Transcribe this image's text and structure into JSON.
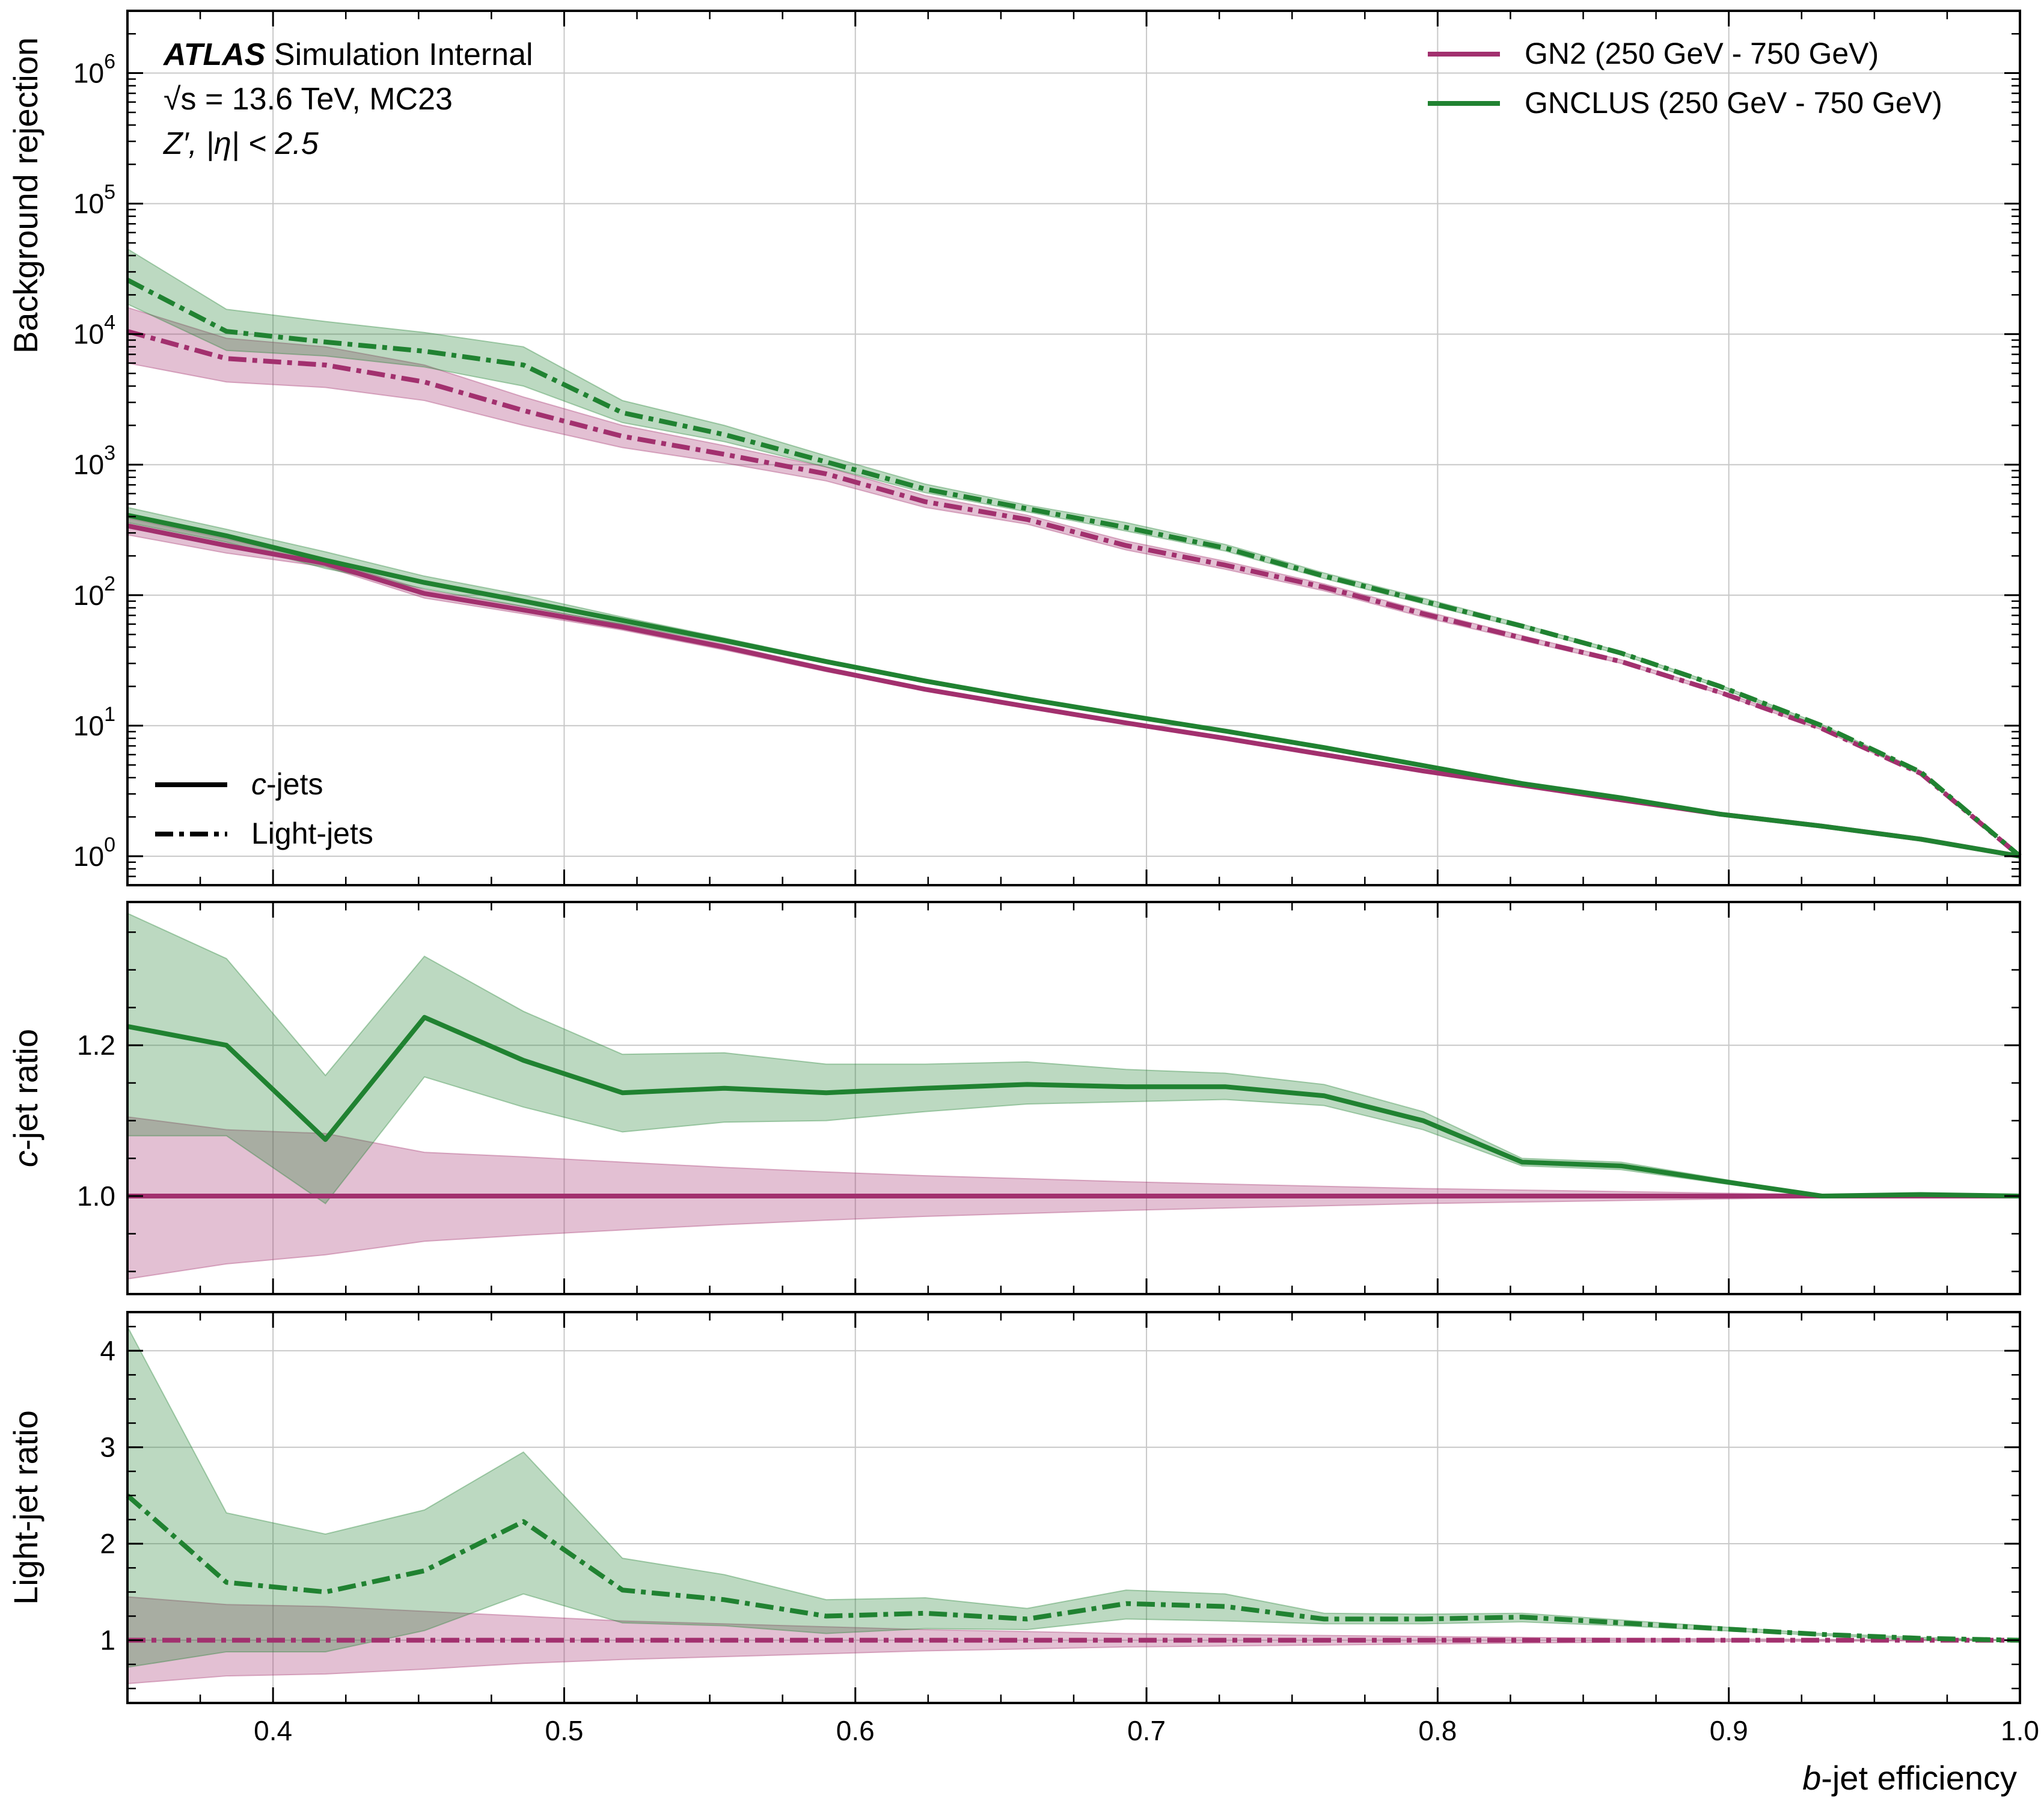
{
  "colors": {
    "gn2": "#A2306E",
    "gnclus": "#208231"
  },
  "annotation": {
    "atlas": "ATLAS",
    "atlas_rest": " Simulation Internal",
    "line2": "√s = 13.6 TeV, MC23",
    "line3": "Z′, |η| < 2.5"
  },
  "legend_models": [
    {
      "name": "GN2 (250 GeV - 750 GeV)",
      "color": "#A2306E"
    },
    {
      "name": "GNCLUS (250 GeV - 750 GeV)",
      "color": "#208231"
    }
  ],
  "legend_styles": [
    {
      "prefix": "c",
      "suffix": "-jets",
      "style": "solid"
    },
    {
      "prefix": "",
      "suffix": "Light-jets",
      "style": "dashdot"
    }
  ],
  "xlabel_prefix": "b",
  "xlabel_suffix": "-jet efficiency",
  "chart_data": [
    {
      "type": "line",
      "panel": "main",
      "ylabel": "Background rejection",
      "yscale": "log",
      "ylim": [
        0.6,
        3000000
      ],
      "xlim": [
        0.35,
        1.0
      ],
      "yticks": [
        1,
        10,
        100,
        1000,
        10000,
        100000,
        1000000
      ],
      "grid": true,
      "x": [
        0.35,
        0.384,
        0.418,
        0.452,
        0.486,
        0.52,
        0.555,
        0.59,
        0.624,
        0.659,
        0.693,
        0.727,
        0.761,
        0.795,
        0.829,
        0.863,
        0.897,
        0.932,
        0.966,
        1.0
      ],
      "series": [
        {
          "name": "GN2 (250 GeV - 750 GeV)",
          "jets": "c-jets",
          "style": "solid",
          "color": "#A2306E",
          "values": [
            340,
            240,
            175,
            103,
            77,
            57,
            40,
            27,
            19,
            14,
            10.5,
            8,
            6,
            4.5,
            3.5,
            2.7,
            2.1,
            1.7,
            1.35,
            1.0
          ],
          "band_low": [
            290,
            210,
            165,
            95,
            72,
            54,
            38,
            26,
            18.5,
            13.7,
            10.3,
            7.9,
            5.95,
            4.45,
            3.47,
            2.69,
            2.09,
            1.7,
            1.35,
            1.0
          ],
          "band_high": [
            390,
            270,
            185,
            110,
            82,
            60,
            42,
            28,
            19.5,
            14.3,
            10.7,
            8.1,
            6.05,
            4.55,
            3.53,
            2.71,
            2.11,
            1.7,
            1.35,
            1.0
          ]
        },
        {
          "name": "GNCLUS (250 GeV - 750 GeV)",
          "jets": "c-jets",
          "style": "solid",
          "color": "#208231",
          "values": [
            410,
            285,
            185,
            125,
            90,
            64,
            45,
            31,
            22,
            16,
            12,
            9.1,
            6.8,
            4.95,
            3.6,
            2.8,
            2.1,
            1.7,
            1.35,
            1.0
          ],
          "band_low": [
            360,
            255,
            160,
            112,
            82,
            60,
            43,
            30,
            21.3,
            15.6,
            11.7,
            8.9,
            6.7,
            4.9,
            3.58,
            2.79,
            2.1,
            1.7,
            1.35,
            1.0
          ],
          "band_high": [
            470,
            320,
            215,
            140,
            100,
            68,
            47,
            32,
            22.7,
            16.4,
            12.3,
            9.3,
            6.9,
            5.0,
            3.62,
            2.81,
            2.1,
            1.7,
            1.35,
            1.0
          ]
        },
        {
          "name": "GN2 (250 GeV - 750 GeV)",
          "jets": "Light-jets",
          "style": "dashdot",
          "color": "#A2306E",
          "values": [
            10500,
            6500,
            5800,
            4300,
            2600,
            1650,
            1200,
            850,
            520,
            380,
            240,
            170,
            115,
            72,
            47,
            31,
            18,
            9.5,
            4.3,
            1.0
          ],
          "band_low": [
            6000,
            4300,
            3900,
            3100,
            2000,
            1350,
            1030,
            750,
            470,
            350,
            222,
            158,
            108,
            68,
            45,
            30,
            17.5,
            9.3,
            4.2,
            1.0
          ],
          "band_high": [
            16000,
            9300,
            8000,
            5800,
            3300,
            2000,
            1400,
            960,
            580,
            410,
            260,
            182,
            122,
            76,
            49,
            32,
            18.5,
            9.7,
            4.4,
            1.0
          ]
        },
        {
          "name": "GNCLUS (250 GeV - 750 GeV)",
          "jets": "Light-jets",
          "style": "dashdot",
          "color": "#208231",
          "values": [
            26000,
            10500,
            8700,
            7400,
            5800,
            2500,
            1700,
            1050,
            650,
            460,
            330,
            230,
            140,
            90,
            58,
            36,
            20,
            10,
            4.4,
            1.0
          ],
          "band_low": [
            17000,
            7500,
            6800,
            5600,
            4000,
            2100,
            1500,
            960,
            610,
            435,
            310,
            218,
            134,
            86,
            56,
            35,
            19.5,
            9.8,
            4.3,
            1.0
          ],
          "band_high": [
            45000,
            15500,
            12500,
            10300,
            8000,
            3100,
            2000,
            1170,
            710,
            490,
            360,
            245,
            148,
            95,
            60,
            37,
            20.5,
            10.2,
            4.5,
            1.0
          ]
        }
      ]
    },
    {
      "type": "line",
      "panel": "c-ratio",
      "ylabel_prefix": "c",
      "ylabel_suffix": "-jet ratio",
      "ylim": [
        0.87,
        1.39
      ],
      "xlim": [
        0.35,
        1.0
      ],
      "yticks": [
        1.0,
        1.2
      ],
      "ytick_labels": [
        "1.0",
        "1.2"
      ],
      "grid": true,
      "x": [
        0.35,
        0.384,
        0.418,
        0.452,
        0.486,
        0.52,
        0.555,
        0.59,
        0.624,
        0.659,
        0.693,
        0.727,
        0.761,
        0.795,
        0.829,
        0.863,
        0.897,
        0.932,
        0.966,
        1.0
      ],
      "series": [
        {
          "name": "GN2 (250 GeV - 750 GeV)",
          "style": "solid",
          "color": "#A2306E",
          "values": [
            1.0,
            1.0,
            1.0,
            1.0,
            1.0,
            1.0,
            1.0,
            1.0,
            1.0,
            1.0,
            1.0,
            1.0,
            1.0,
            1.0,
            1.0,
            1.0,
            1.0,
            1.0,
            1.0,
            1.0
          ],
          "band_low": [
            0.89,
            0.91,
            0.922,
            0.94,
            0.948,
            0.955,
            0.962,
            0.968,
            0.973,
            0.977,
            0.981,
            0.984,
            0.987,
            0.99,
            0.992,
            0.994,
            0.996,
            0.998,
            0.999,
            1.0
          ],
          "band_high": [
            1.105,
            1.088,
            1.083,
            1.058,
            1.052,
            1.045,
            1.038,
            1.032,
            1.027,
            1.023,
            1.019,
            1.016,
            1.013,
            1.01,
            1.008,
            1.006,
            1.004,
            1.002,
            1.001,
            1.0
          ]
        },
        {
          "name": "GNCLUS (250 GeV - 750 GeV)",
          "style": "solid",
          "color": "#208231",
          "values": [
            1.225,
            1.2,
            1.075,
            1.237,
            1.18,
            1.137,
            1.143,
            1.137,
            1.143,
            1.148,
            1.145,
            1.145,
            1.133,
            1.1,
            1.045,
            1.04,
            1.02,
            1.0,
            1.002,
            1.0
          ],
          "band_low": [
            1.08,
            1.08,
            0.99,
            1.158,
            1.118,
            1.085,
            1.098,
            1.1,
            1.112,
            1.122,
            1.125,
            1.128,
            1.12,
            1.088,
            1.04,
            1.035,
            1.017,
            1.0,
            1.0,
            1.0
          ],
          "band_high": [
            1.375,
            1.315,
            1.16,
            1.318,
            1.245,
            1.188,
            1.19,
            1.175,
            1.175,
            1.178,
            1.168,
            1.163,
            1.148,
            1.112,
            1.05,
            1.045,
            1.023,
            1.0,
            1.003,
            1.0
          ]
        }
      ]
    },
    {
      "type": "line",
      "panel": "light-ratio",
      "ylabel": "Light-jet ratio",
      "ylim": [
        0.35,
        4.4
      ],
      "xlim": [
        0.35,
        1.0
      ],
      "yticks": [
        1,
        2,
        3,
        4
      ],
      "ytick_labels": [
        "1",
        "2",
        "3",
        "4"
      ],
      "xticks": [
        0.4,
        0.5,
        0.6,
        0.7,
        0.8,
        0.9,
        1.0
      ],
      "xtick_labels": [
        "0.4",
        "0.5",
        "0.6",
        "0.7",
        "0.8",
        "0.9",
        "1.0"
      ],
      "grid": true,
      "x": [
        0.35,
        0.384,
        0.418,
        0.452,
        0.486,
        0.52,
        0.555,
        0.59,
        0.624,
        0.659,
        0.693,
        0.727,
        0.761,
        0.795,
        0.829,
        0.863,
        0.897,
        0.932,
        0.966,
        1.0
      ],
      "series": [
        {
          "name": "GN2 (250 GeV - 750 GeV)",
          "style": "dashdot",
          "color": "#A2306E",
          "values": [
            1,
            1,
            1,
            1,
            1,
            1,
            1,
            1,
            1,
            1,
            1,
            1,
            1,
            1,
            1,
            1,
            1,
            1,
            1,
            1
          ],
          "band_low": [
            0.55,
            0.63,
            0.65,
            0.7,
            0.76,
            0.8,
            0.83,
            0.86,
            0.89,
            0.91,
            0.93,
            0.94,
            0.95,
            0.96,
            0.97,
            0.98,
            0.985,
            0.99,
            0.995,
            1.0
          ],
          "band_high": [
            1.45,
            1.37,
            1.35,
            1.3,
            1.25,
            1.2,
            1.17,
            1.14,
            1.11,
            1.09,
            1.07,
            1.06,
            1.05,
            1.04,
            1.03,
            1.02,
            1.015,
            1.01,
            1.005,
            1.0
          ]
        },
        {
          "name": "GNCLUS (250 GeV - 750 GeV)",
          "style": "dashdot",
          "color": "#208231",
          "values": [
            2.5,
            1.6,
            1.5,
            1.72,
            2.23,
            1.52,
            1.42,
            1.25,
            1.28,
            1.22,
            1.38,
            1.35,
            1.22,
            1.22,
            1.24,
            1.18,
            1.12,
            1.06,
            1.02,
            1.0
          ],
          "band_low": [
            0.72,
            0.88,
            0.88,
            1.1,
            1.48,
            1.18,
            1.15,
            1.07,
            1.12,
            1.11,
            1.22,
            1.2,
            1.17,
            1.17,
            1.19,
            1.15,
            1.1,
            1.05,
            1.01,
            1.0
          ],
          "band_high": [
            4.25,
            2.32,
            2.1,
            2.35,
            2.95,
            1.85,
            1.68,
            1.42,
            1.44,
            1.33,
            1.52,
            1.48,
            1.28,
            1.27,
            1.28,
            1.21,
            1.14,
            1.07,
            1.03,
            1.0
          ]
        }
      ]
    }
  ]
}
